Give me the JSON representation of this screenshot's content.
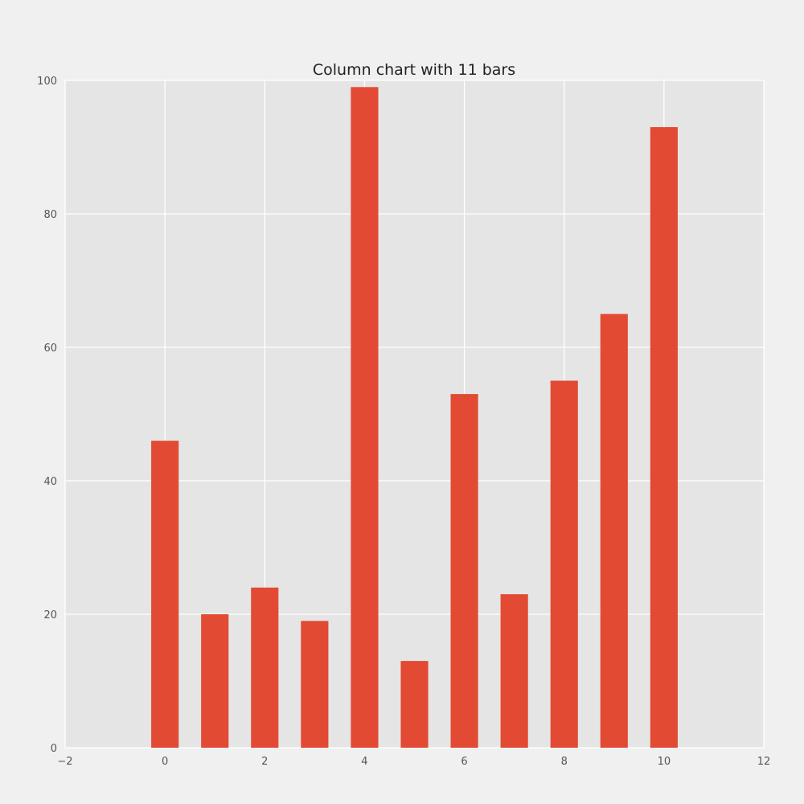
{
  "chart_data": {
    "type": "bar",
    "title": "Column chart with 11 bars",
    "xlabel": "",
    "ylabel": "",
    "x": [
      0,
      1,
      2,
      3,
      4,
      5,
      6,
      7,
      8,
      9,
      10
    ],
    "values": [
      46,
      20,
      24,
      19,
      99,
      13,
      53,
      23,
      55,
      65,
      93
    ],
    "bar_width": 0.55,
    "xlim": [
      -2,
      12
    ],
    "ylim": [
      0,
      100
    ],
    "xticks": [
      -2,
      0,
      2,
      4,
      6,
      8,
      10,
      12
    ],
    "xtick_labels": [
      "−2",
      "0",
      "2",
      "4",
      "6",
      "8",
      "10",
      "12"
    ],
    "yticks": [
      0,
      20,
      40,
      60,
      80,
      100
    ],
    "ytick_labels": [
      "0",
      "20",
      "40",
      "60",
      "80",
      "100"
    ],
    "grid": true,
    "bar_color": "#e24a33",
    "plot_background": "#e5e5e5",
    "grid_color": "#ffffff"
  }
}
